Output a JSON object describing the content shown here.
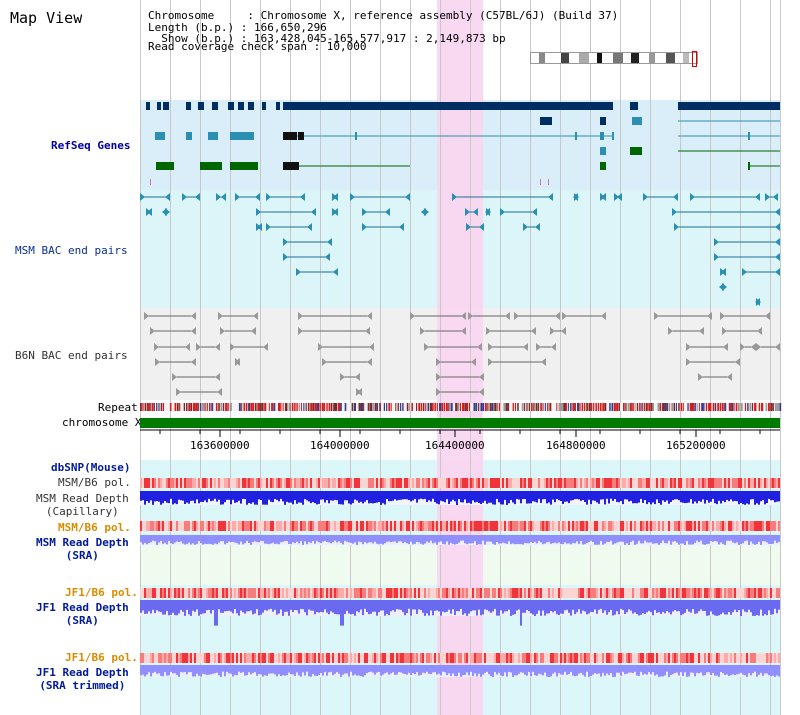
{
  "title": "Map View",
  "info": {
    "chromosome_line": "Chromosome     : Chromosome X, reference assembly (C57BL/6J) (Build 37)",
    "length_line": "Length (b.p.) : 166,650,296",
    "show_line": "  Show (b.p.) : 163,428,045-165,577,917 : 2,149,873 bp",
    "coverage_line": "Read coverage check span : 10,000"
  },
  "tracks": {
    "refseq": "RefSeq Genes",
    "msm_bac": "MSM BAC end pairs",
    "b6n_bac": "B6N BAC end pairs",
    "repeat": "Repeat",
    "chromosome": "chromosome X",
    "dbsnp": "dbSNP(Mouse)",
    "msm_b6_pol_1": "MSM/B6 pol.",
    "msm_read_depth_cap": "MSM Read Depth\n(Capillary)",
    "msm_b6_pol_2": "MSM/B6 pol.",
    "msm_read_depth_sra": "MSM Read Depth\n(SRA)",
    "jf1_b6_pol_1": "JF1/B6 pol.",
    "jf1_read_depth_sra": "JF1 Read Depth\n(SRA)",
    "jf1_b6_pol_2": "JF1/B6 pol.",
    "jf1_read_depth_trim": "JF1 Read Depth\n(SRA trimmed)"
  },
  "axis": {
    "ticks": [
      "163600000",
      "164000000",
      "164400000",
      "164800000",
      "165200000"
    ]
  },
  "colors": {
    "refseq_bg": "#d9eef8",
    "msm_bg": "#dcf5f8",
    "b6n_bg": "#f0f0f0",
    "highlight": "#f9d6f0",
    "chrom_bar": "#007a00",
    "gene_dark": "#002e63",
    "gene_mid": "#2a8fb0",
    "gene_green": "#006600",
    "pol_red": "#f0343a",
    "depth_blue": "#2a2ae0",
    "depth_light": "#8f8fff"
  }
}
